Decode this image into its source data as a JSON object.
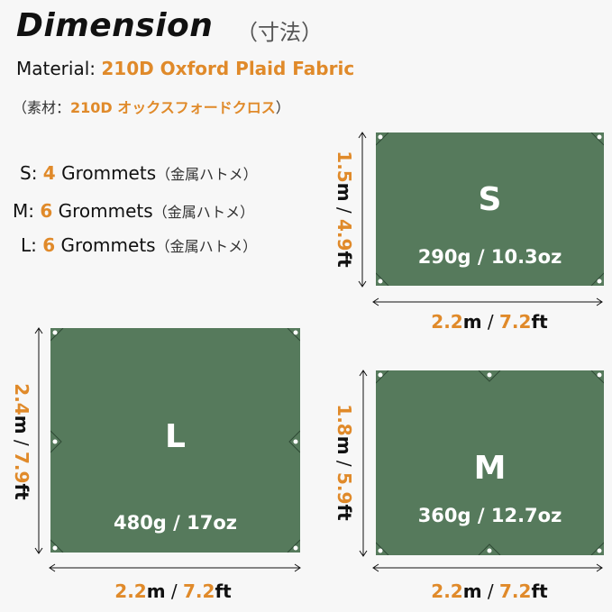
{
  "header": {
    "title": "Dimension",
    "title_jp": "（寸法）"
  },
  "material": {
    "label": "Material:",
    "value": "210D Oxford Plaid Fabric",
    "jp_open": "（素材：",
    "jp_value": "210D  オックスフォードクロス",
    "jp_close": "）"
  },
  "grommets": [
    {
      "size": "S:",
      "count": "4",
      "label": "Grommets",
      "jp": "（金属ハトメ）"
    },
    {
      "size": "M:",
      "count": "6",
      "label": "Grommets",
      "jp": "（金属ハトメ）"
    },
    {
      "size": "L:",
      "count": "6",
      "label": "Grommets",
      "jp": "（金属ハトメ）"
    }
  ],
  "tarps": {
    "s": {
      "letter": "S",
      "weight": "290g / 10.3oz",
      "h_m": "1.5",
      "h_ft": "4.9",
      "w_m": "2.2",
      "w_ft": "7.2"
    },
    "l": {
      "letter": "L",
      "weight": "480g / 17oz",
      "h_m": "2.4",
      "h_ft": "7.9",
      "w_m": "2.2",
      "w_ft": "7.2"
    },
    "m": {
      "letter": "M",
      "weight": "360g / 12.7oz",
      "h_m": "1.8",
      "h_ft": "5.9",
      "w_m": "2.2",
      "w_ft": "7.2"
    }
  },
  "units": {
    "m": "m",
    "sep": " / ",
    "ft": "ft"
  },
  "colors": {
    "accent": "#e08a2a",
    "tarp": "#567a5c",
    "background": "#f7f7f7"
  }
}
